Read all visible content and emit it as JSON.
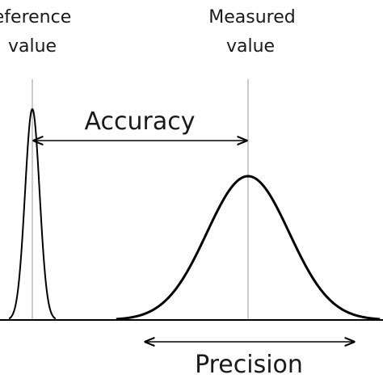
{
  "labels": {
    "reference_line1": "eference",
    "reference_line2": "value",
    "measured_line1": "Measured",
    "measured_line2": "value",
    "accuracy": "Accuracy",
    "precision": "Precision"
  },
  "curves": {
    "reference_peak": {
      "mean": 40,
      "sd": 9,
      "height": 1.0
    },
    "measured_peak": {
      "mean": 307,
      "sd": 51,
      "height": 1.0
    }
  },
  "colors": {
    "ink": "#000000",
    "guide": "#9a9a9a",
    "text": "#1a1a1a"
  }
}
